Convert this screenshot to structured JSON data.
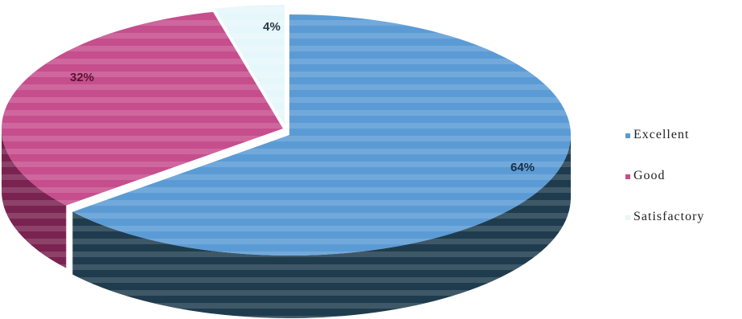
{
  "chart_data": {
    "type": "pie",
    "style": "3d-exploded-tilted",
    "title": "",
    "categories": [
      "Excellent",
      "Good",
      "Satisfactory"
    ],
    "values": [
      64,
      32,
      4
    ],
    "labels": [
      "64%",
      "32%",
      "4%"
    ],
    "colors": [
      "#5b9bd5",
      "#c64e8d",
      "#e6f7fb"
    ],
    "side_colors": [
      "#1f3c4e",
      "#7a2350",
      "#a9c4cc"
    ],
    "label_colors": [
      "#1a2f45",
      "#5a1230",
      "#2a3a45"
    ],
    "legend": {
      "position": "right",
      "items": [
        {
          "label": "Excellent",
          "color": "#5b9bd5"
        },
        {
          "label": "Good",
          "color": "#c64e8d"
        },
        {
          "label": "Satisfactory",
          "color": "#e6f7fb"
        }
      ]
    }
  }
}
